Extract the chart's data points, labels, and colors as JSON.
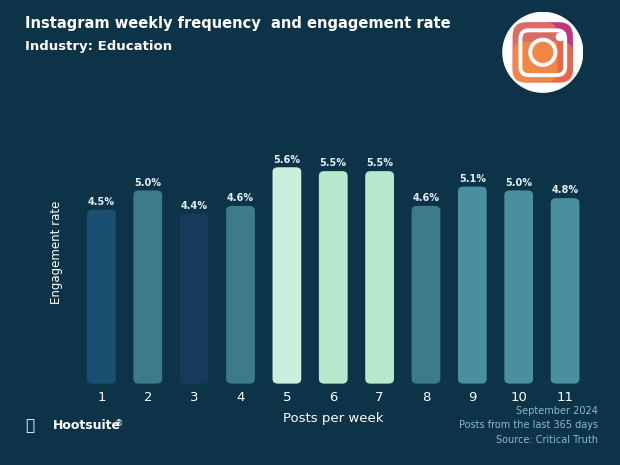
{
  "categories": [
    "1",
    "2",
    "3",
    "4",
    "5",
    "6",
    "7",
    "8",
    "9",
    "10",
    "11"
  ],
  "values": [
    4.5,
    5.0,
    4.4,
    4.6,
    5.6,
    5.5,
    5.5,
    4.6,
    5.1,
    5.0,
    4.8
  ],
  "labels": [
    "4.5%",
    "5.0%",
    "4.4%",
    "4.6%",
    "5.6%",
    "5.5%",
    "5.5%",
    "4.6%",
    "5.1%",
    "5.0%",
    "4.8%"
  ],
  "bar_colors": [
    "#1b4f72",
    "#3d7a8a",
    "#163a5a",
    "#3d7a8a",
    "#c8f0dc",
    "#b8e8cc",
    "#b8e8cc",
    "#3d7a8a",
    "#4a8fa0",
    "#4a8fa0",
    "#4a8fa0"
  ],
  "bg_color": "#0d3349",
  "title_line1": "Instagram weekly frequency  and engagement rate",
  "title_line2": "Industry: Education",
  "xlabel": "Posts per week",
  "ylabel": "Engagement rate",
  "ylim": [
    0,
    6.8
  ],
  "footer_right": "September 2024\nPosts from the last 365 days\nSource: Critical Truth",
  "text_color": "#ffffff",
  "label_color": "#e0f0f0",
  "footer_text_color": "#8ab8c8"
}
